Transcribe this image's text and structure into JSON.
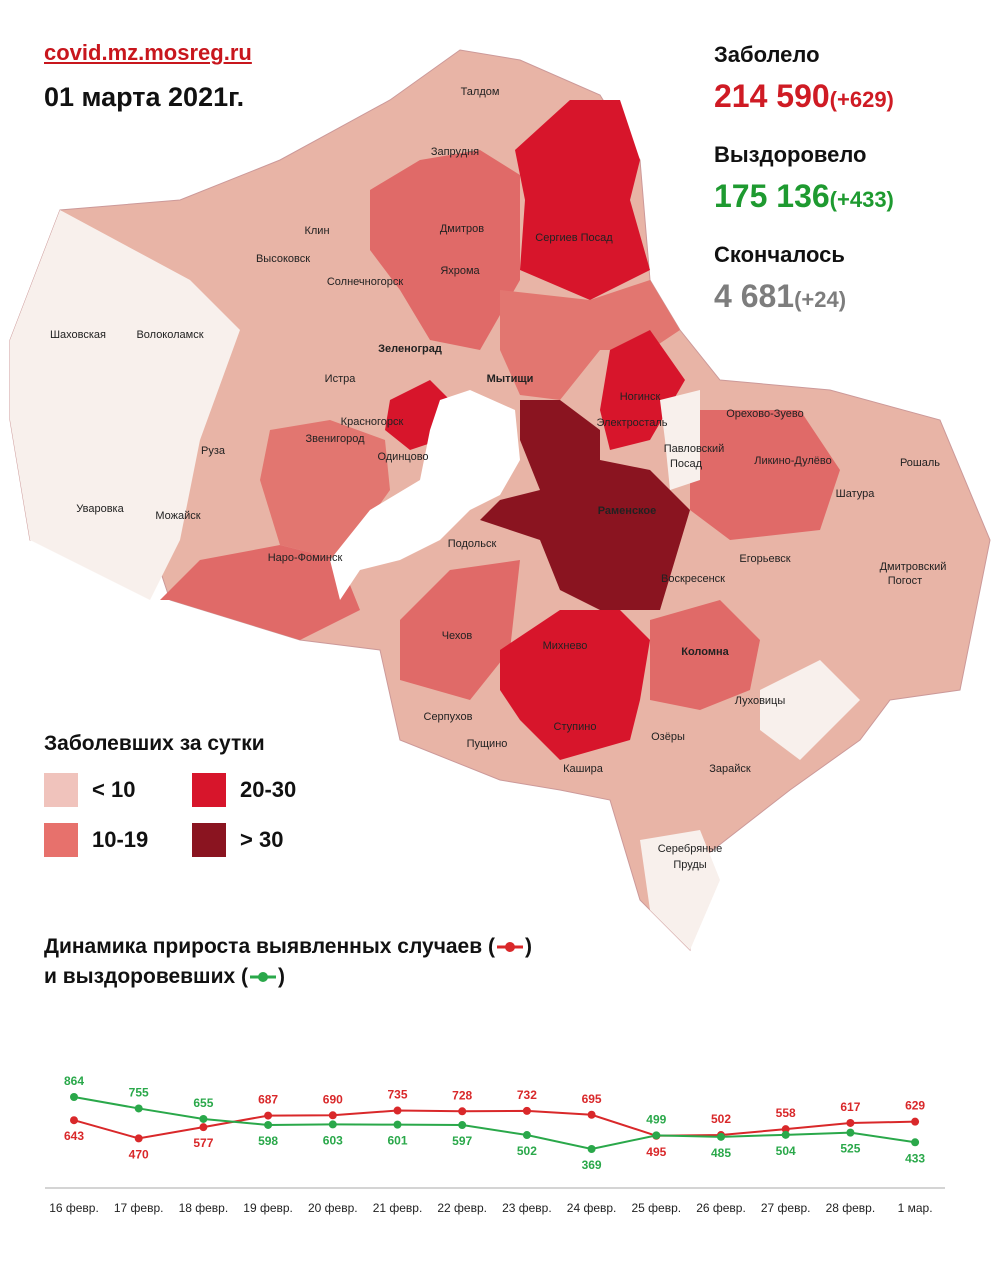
{
  "header": {
    "site": "covid.mz.mosreg.ru",
    "date": "01 марта 2021г."
  },
  "stats": [
    {
      "label": "Заболело",
      "value": "214 590",
      "change": "(+629)",
      "color": "#cf1b24"
    },
    {
      "label": "Выздоровело",
      "value": "175 136",
      "change": "(+433)",
      "color": "#1e9a30"
    },
    {
      "label": "Скончалось",
      "value": "4 681",
      "change": "(+24)",
      "color": "#7d7d7d"
    }
  ],
  "map": {
    "places": [
      "Талдом",
      "Запрудня",
      "Дмитров",
      "Яхрома",
      "Сергиев Посад",
      "Клин",
      "Высоковск",
      "Солнечногорск",
      "Шаховская",
      "Волоколамск",
      "Зеленоград",
      "Истра",
      "Мытищи",
      "Красногорск",
      "Ногинск",
      "Электросталь",
      "Орехово-Зуево",
      "Павловский",
      "Посад",
      "Ликино-Дулёво",
      "Звенигород",
      "Одинцово",
      "Руза",
      "Рошаль",
      "Шатура",
      "Уваровка",
      "Можайск",
      "Раменское",
      "Подольск",
      "Наро-Фоминск",
      "Егорьевск",
      "Воскресенск",
      "Дмитровский",
      "Погост",
      "Чехов",
      "Михнево",
      "Коломна",
      "Луховицы",
      "Серпухов",
      "Пущино",
      "Ступино",
      "Озёры",
      "Кашира",
      "Зарайск",
      "Серебряные",
      "Пруды"
    ]
  },
  "legend": {
    "title": "Заболевших за сутки",
    "items": [
      {
        "label": "< 10",
        "color": "#f0c3bc"
      },
      {
        "label": "10-19",
        "color": "#e7716c"
      },
      {
        "label": "20-30",
        "color": "#d7152b"
      },
      {
        "label": "> 30",
        "color": "#8a1420"
      }
    ]
  },
  "chart_data": {
    "type": "line",
    "title": [
      "Динамика прироста выявленных случаев (",
      ")",
      "и выздоровевших (",
      ")"
    ],
    "categories": [
      "16 февр.",
      "17 февр.",
      "18 февр.",
      "19 февр.",
      "20 февр.",
      "21 февр.",
      "22 февр.",
      "23 февр.",
      "24 февр.",
      "25 февр.",
      "26 февр.",
      "27 февр.",
      "28 февр.",
      "1 мар."
    ],
    "series": [
      {
        "color": "#d9282a",
        "values": [
          643,
          470,
          577,
          687,
          690,
          735,
          728,
          732,
          695,
          495,
          502,
          558,
          617,
          629
        ]
      },
      {
        "color": "#2aa84a",
        "values": [
          864,
          755,
          655,
          598,
          603,
          601,
          597,
          502,
          369,
          499,
          485,
          504,
          525,
          433
        ]
      }
    ]
  }
}
